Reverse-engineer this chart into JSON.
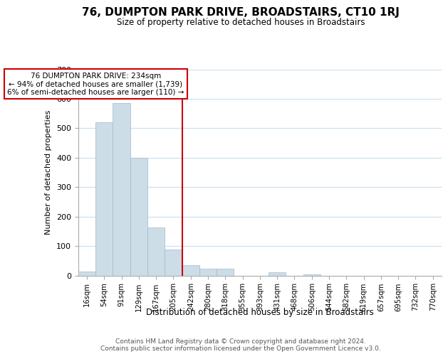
{
  "title": "76, DUMPTON PARK DRIVE, BROADSTAIRS, CT10 1RJ",
  "subtitle": "Size of property relative to detached houses in Broadstairs",
  "xlabel": "Distribution of detached houses by size in Broadstairs",
  "ylabel": "Number of detached properties",
  "bar_labels": [
    "16sqm",
    "54sqm",
    "91sqm",
    "129sqm",
    "167sqm",
    "205sqm",
    "242sqm",
    "280sqm",
    "318sqm",
    "355sqm",
    "393sqm",
    "431sqm",
    "468sqm",
    "506sqm",
    "544sqm",
    "582sqm",
    "619sqm",
    "657sqm",
    "695sqm",
    "732sqm",
    "770sqm"
  ],
  "bar_heights": [
    14,
    520,
    585,
    400,
    163,
    87,
    34,
    22,
    24,
    0,
    0,
    12,
    0,
    3,
    0,
    0,
    0,
    0,
    0,
    0,
    0
  ],
  "bar_color": "#ccdde8",
  "bar_edge_color": "#a0b8cc",
  "property_line_index": 6,
  "annotation_line1": "76 DUMPTON PARK DRIVE: 234sqm",
  "annotation_line2": "← 94% of detached houses are smaller (1,739)",
  "annotation_line3": "6% of semi-detached houses are larger (110) →",
  "ylim": [
    0,
    700
  ],
  "yticks": [
    0,
    100,
    200,
    300,
    400,
    500,
    600,
    700
  ],
  "footer_line1": "Contains HM Land Registry data © Crown copyright and database right 2024.",
  "footer_line2": "Contains public sector information licensed under the Open Government Licence v3.0."
}
